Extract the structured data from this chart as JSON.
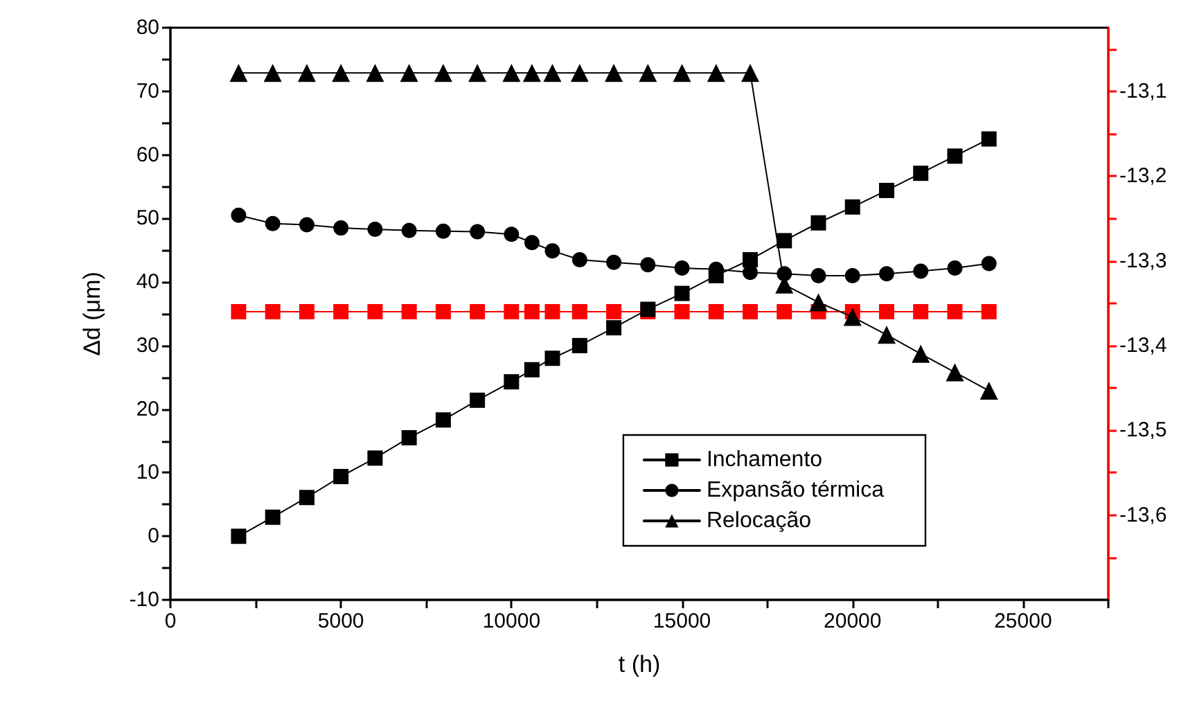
{
  "chart_data": {
    "type": "line",
    "xlabel": "t (h)",
    "ylabel": "Δd (μm)",
    "x": [
      2000,
      3000,
      4000,
      5000,
      6000,
      7000,
      8000,
      9000,
      10000,
      10600,
      11200,
      12000,
      13000,
      14000,
      15000,
      16000,
      17000,
      18000,
      19000,
      20000,
      21000,
      22000,
      23000,
      24000
    ],
    "series": [
      {
        "name": "Inchamento",
        "color": "#000000",
        "marker": "square",
        "values": [
          0,
          3.0,
          6.1,
          9.4,
          12.3,
          15.5,
          18.3,
          21.4,
          24.3,
          26.2,
          28.0,
          30.0,
          32.8,
          35.7,
          38.2,
          41.0,
          43.5,
          46.5,
          49.3,
          51.8,
          54.4,
          57.1,
          59.8,
          62.5
        ]
      },
      {
        "name": "Expansão térmica",
        "color": "#000000",
        "marker": "circle",
        "values": [
          50.5,
          49.2,
          49.0,
          48.5,
          48.3,
          48.1,
          48.0,
          47.9,
          47.5,
          46.2,
          44.9,
          43.5,
          43.1,
          42.7,
          42.2,
          42.0,
          41.5,
          41.3,
          41.0,
          41.0,
          41.3,
          41.7,
          42.2,
          42.9
        ]
      },
      {
        "name": "Relocação",
        "color": "#000000",
        "marker": "triangle",
        "values": [
          72.9,
          72.9,
          72.9,
          72.9,
          72.9,
          72.9,
          72.9,
          72.9,
          72.9,
          72.9,
          72.9,
          72.9,
          72.9,
          72.9,
          72.9,
          72.9,
          72.9,
          39.6,
          36.8,
          34.5,
          31.7,
          28.7,
          25.8,
          22.9
        ]
      },
      {
        "color": "#ff0000",
        "marker": "square",
        "axis": "y2",
        "values": [
          -13.36,
          -13.36,
          -13.36,
          -13.36,
          -13.36,
          -13.36,
          -13.36,
          -13.36,
          -13.36,
          -13.36,
          -13.36,
          -13.36,
          -13.36,
          -13.36,
          -13.36,
          -13.36,
          -13.36,
          -13.36,
          -13.36,
          -13.36,
          -13.36,
          -13.36,
          -13.36,
          -13.36
        ]
      }
    ],
    "xlim": [
      0,
      27500
    ],
    "xticks": [
      0,
      {
        "value": 2500,
        "label": null
      },
      5000,
      {
        "value": 7500,
        "label": null
      },
      10000,
      {
        "value": 12500,
        "label": null
      },
      15000,
      {
        "value": 17500,
        "label": null
      },
      20000,
      {
        "value": 22500,
        "label": null
      },
      25000,
      {
        "value": 27500,
        "label": null
      }
    ],
    "ylim": [
      -10,
      80
    ],
    "yticks": [
      -10,
      {
        "value": -5,
        "label": null
      },
      0,
      {
        "value": 5,
        "label": null
      },
      10,
      {
        "value": 15,
        "label": null
      },
      20,
      {
        "value": 25,
        "label": null
      },
      30,
      {
        "value": 35,
        "label": null
      },
      40,
      {
        "value": 45,
        "label": null
      },
      50,
      {
        "value": 55,
        "label": null
      },
      60,
      {
        "value": 65,
        "label": null
      },
      70,
      {
        "value": 75,
        "label": null
      },
      80
    ],
    "y2lim": [
      -13.7,
      -13.025
    ],
    "y2ticks": [
      {
        "value": -13.05,
        "label": null
      },
      {
        "value": -13.1,
        "label": "-13,1"
      },
      {
        "value": -13.15,
        "label": null
      },
      {
        "value": -13.2,
        "label": "-13,2"
      },
      {
        "value": -13.25,
        "label": null
      },
      {
        "value": -13.3,
        "label": "-13,3"
      },
      {
        "value": -13.35,
        "label": null
      },
      {
        "value": -13.4,
        "label": "-13,4"
      },
      {
        "value": -13.45,
        "label": null
      },
      {
        "value": -13.5,
        "label": "-13,5"
      },
      {
        "value": -13.55,
        "label": null
      },
      {
        "value": -13.6,
        "label": "-13,6"
      },
      {
        "value": -13.65,
        "label": null
      }
    ],
    "grid": false,
    "legend": "bottom right",
    "line_style": "solid"
  }
}
